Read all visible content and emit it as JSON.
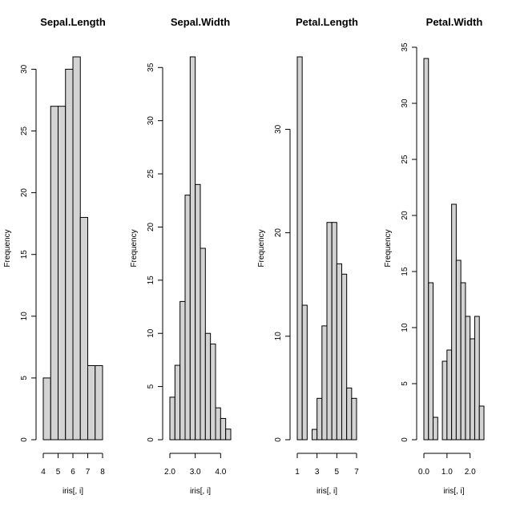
{
  "chart_data": [
    {
      "type": "bar",
      "title": "Sepal.Length",
      "xlabel": "iris[, i]",
      "ylabel": "Frequency",
      "bin_edges": [
        4.0,
        4.5,
        5.0,
        5.5,
        6.0,
        6.5,
        7.0,
        7.5,
        8.0
      ],
      "values": [
        5,
        27,
        27,
        30,
        31,
        18,
        6,
        6
      ],
      "xlim": [
        4,
        8
      ],
      "ylim": [
        0,
        31
      ],
      "xticks": [
        4,
        5,
        6,
        7,
        8
      ],
      "xtick_labels": [
        "4",
        "5",
        "6",
        "7",
        "8"
      ],
      "yticks": [
        0,
        5,
        10,
        15,
        20,
        25,
        30
      ],
      "ytick_labels": [
        "0",
        "5",
        "10",
        "15",
        "20",
        "25",
        "30"
      ]
    },
    {
      "type": "bar",
      "title": "Sepal.Width",
      "xlabel": "iris[, i]",
      "ylabel": "Frequency",
      "bin_edges": [
        2.0,
        2.2,
        2.4,
        2.6,
        2.8,
        3.0,
        3.2,
        3.4,
        3.6,
        3.8,
        4.0,
        4.2,
        4.4
      ],
      "values": [
        4,
        7,
        13,
        23,
        36,
        24,
        18,
        10,
        9,
        3,
        2,
        1
      ],
      "xlim": [
        2.0,
        4.4
      ],
      "ylim": [
        0,
        36
      ],
      "xticks": [
        2.0,
        3.0,
        4.0
      ],
      "xtick_labels": [
        "2.0",
        "3.0",
        "4.0"
      ],
      "yticks": [
        0,
        5,
        10,
        15,
        20,
        25,
        30,
        35
      ],
      "ytick_labels": [
        "0",
        "5",
        "10",
        "15",
        "20",
        "25",
        "30",
        "35"
      ]
    },
    {
      "type": "bar",
      "title": "Petal.Length",
      "xlabel": "iris[, i]",
      "ylabel": "Frequency",
      "bin_edges": [
        1.0,
        1.5,
        2.0,
        2.5,
        3.0,
        3.5,
        4.0,
        4.5,
        5.0,
        5.5,
        6.0,
        6.5,
        7.0
      ],
      "values": [
        37,
        13,
        0,
        1,
        4,
        11,
        21,
        21,
        17,
        16,
        5,
        4
      ],
      "xlim": [
        1,
        7
      ],
      "ylim": [
        0,
        37
      ],
      "xticks": [
        1,
        3,
        5,
        7
      ],
      "xtick_labels": [
        "1",
        "3",
        "5",
        "7"
      ],
      "yticks": [
        0,
        10,
        20,
        30
      ],
      "ytick_labels": [
        "0",
        "10",
        "20",
        "30"
      ]
    },
    {
      "type": "bar",
      "title": "Petal.Width",
      "xlabel": "iris[, i]",
      "ylabel": "Frequency",
      "bin_edges": [
        0.0,
        0.2,
        0.4,
        0.6,
        0.8,
        1.0,
        1.2,
        1.4,
        1.6,
        1.8,
        2.0,
        2.2,
        2.4,
        2.6
      ],
      "values": [
        34,
        14,
        2,
        0,
        7,
        8,
        21,
        16,
        14,
        11,
        9,
        11,
        3
      ],
      "xlim": [
        0.0,
        2.6
      ],
      "ylim": [
        0,
        35
      ],
      "xticks": [
        0.0,
        1.0,
        2.0
      ],
      "xtick_labels": [
        "0.0",
        "1.0",
        "2.0"
      ],
      "yticks": [
        0,
        5,
        10,
        15,
        20,
        25,
        30,
        35
      ],
      "ytick_labels": [
        "0",
        "5",
        "10",
        "15",
        "20",
        "25",
        "30",
        "35"
      ]
    }
  ],
  "colors": {
    "bar_fill": "#d3d3d3",
    "bar_stroke": "#000000",
    "background": "#ffffff"
  }
}
